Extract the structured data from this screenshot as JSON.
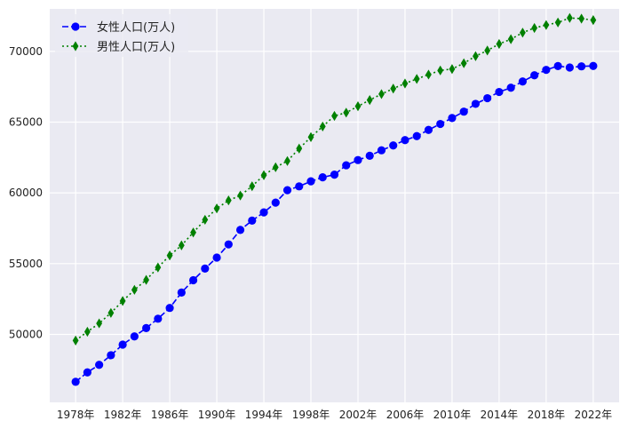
{
  "chart_data": {
    "type": "line",
    "title": "",
    "xlabel": "",
    "ylabel": "",
    "grid": true,
    "legend_position": "top-left",
    "background": "#EAEAF2",
    "grid_color": "#FFFFFF",
    "x": [
      1978,
      1979,
      1980,
      1981,
      1982,
      1983,
      1984,
      1985,
      1986,
      1987,
      1988,
      1989,
      1990,
      1991,
      1992,
      1993,
      1994,
      1995,
      1996,
      1997,
      1998,
      1999,
      2000,
      2001,
      2002,
      2003,
      2004,
      2005,
      2006,
      2007,
      2008,
      2009,
      2010,
      2011,
      2012,
      2013,
      2014,
      2015,
      2016,
      2017,
      2018,
      2019,
      2020,
      2021,
      2022
    ],
    "xticks": [
      1978,
      1982,
      1986,
      1990,
      1994,
      1998,
      2002,
      2006,
      2010,
      2014,
      2018,
      2022
    ],
    "xtick_labels": [
      "1978年",
      "1982年",
      "1986年",
      "1990年",
      "1994年",
      "1998年",
      "2002年",
      "2006年",
      "2010年",
      "2014年",
      "2018年",
      "2022年"
    ],
    "xlim": [
      1975.8,
      2024.2
    ],
    "ylim": [
      45200,
      73000
    ],
    "yticks": [
      50000,
      55000,
      60000,
      65000,
      70000
    ],
    "ytick_labels": [
      "50000",
      "55000",
      "60000",
      "65000",
      "70000"
    ],
    "series": [
      {
        "name": "女性人口(万人)",
        "color": "#0000FF",
        "linestyle": "dashed",
        "marker": "circle",
        "values": [
          46650,
          47320,
          47850,
          48530,
          49280,
          49860,
          50450,
          51110,
          51870,
          52960,
          53830,
          54650,
          55430,
          56360,
          57380,
          58040,
          58620,
          59310,
          60190,
          60460,
          60820,
          61100,
          61290,
          61950,
          62320,
          62620,
          63010,
          63350,
          63730,
          64010,
          64450,
          64870,
          65290,
          65740,
          66290,
          66690,
          67130,
          67430,
          67870,
          68310,
          68690,
          68960,
          68860,
          68940,
          68970
        ]
      },
      {
        "name": "男性人口(万人)",
        "color": "#008000",
        "linestyle": "dotted",
        "marker": "thin_diamond",
        "values": [
          49570,
          50190,
          50780,
          51520,
          52360,
          53150,
          53850,
          54730,
          55580,
          56290,
          57200,
          58100,
          58900,
          59470,
          59810,
          60470,
          61250,
          61810,
          62250,
          63130,
          63940,
          64690,
          65440,
          65670,
          66120,
          66560,
          66980,
          67370,
          67730,
          68050,
          68360,
          68650,
          68750,
          69160,
          69660,
          70060,
          70520,
          70860,
          71320,
          71650,
          71860,
          72040,
          72360,
          72310,
          72210
        ]
      }
    ]
  }
}
